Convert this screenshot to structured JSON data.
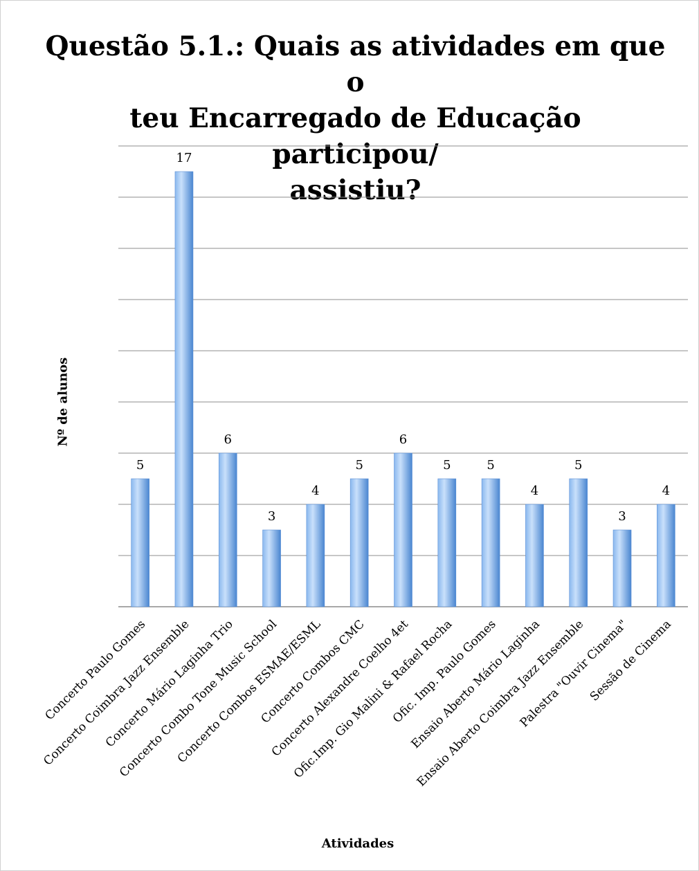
{
  "chart_data": {
    "type": "bar",
    "title": "Questão 5.1.: Quais as atividades em que o\nteu Encarregado de Educação participou/\nassistiu?",
    "xlabel": "Atividades",
    "ylabel": "Nº de alunos",
    "ylim": [
      0,
      18
    ],
    "grid": true,
    "legend": "none",
    "categories": [
      "Concerto Paulo Gomes",
      "Concerto Coimbra Jazz Ensemble",
      "Concerto Mário Laginha Trio",
      "Concerto Combo Tone Music School",
      "Concerto Combos ESMAE/ESML",
      "Concerto Combos CMC",
      "Concerto Alexandre Coelho 4et",
      "Ofic.Imp. Gio Malini & Rafael Rocha",
      "Ofic. Imp. Paulo Gomes",
      "Ensaio Aberto Mário Laginha",
      "Ensaio Aberto Coimbra Jazz Ensemble",
      "Palestra \"Ouvir Cinema\"",
      "Sessão de Cinema"
    ],
    "values": [
      5,
      17,
      6,
      3,
      4,
      5,
      6,
      5,
      5,
      4,
      5,
      3,
      4
    ],
    "colors": {
      "bar_light": "#c9e0fb",
      "bar_mid": "#8ab8ee",
      "bar_dark": "#4a86d0",
      "grid": "#8c8c8c"
    }
  }
}
